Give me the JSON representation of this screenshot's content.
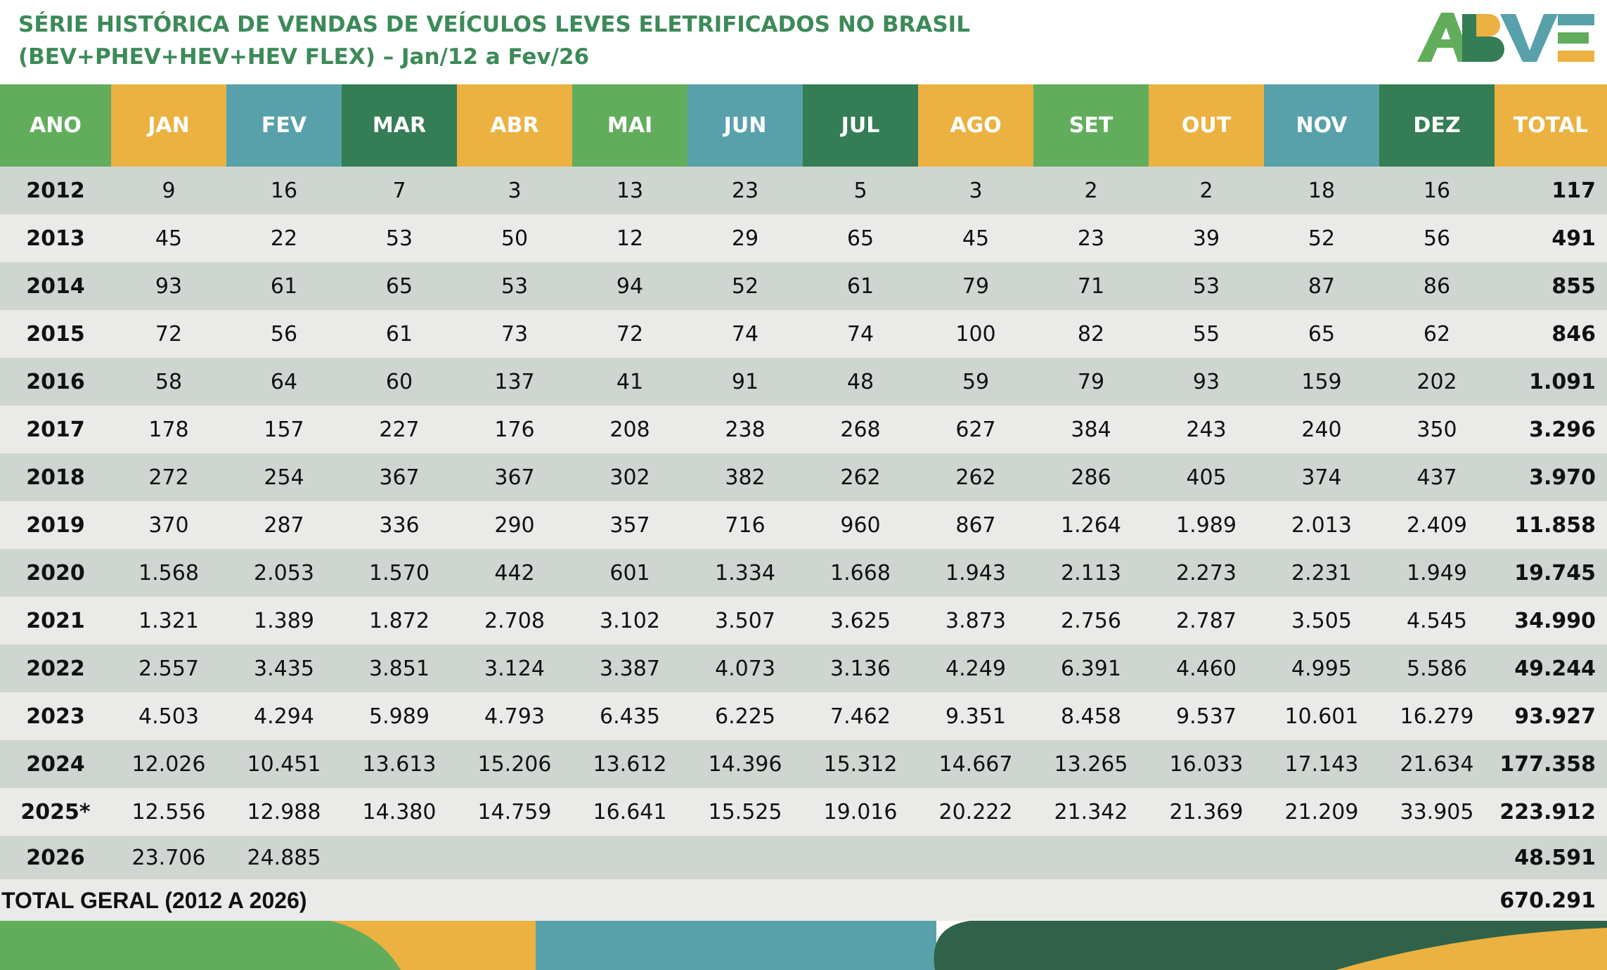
{
  "header": {
    "title_line1": "SÉRIE HISTÓRICA DE VENDAS DE VEÍCULOS LEVES ELETRIFICADOS NO BRASIL",
    "title_line2": "(BEV+PHEV+HEV+HEV FLEX) – Jan/12 a Fev/26",
    "logo_text": "ABVE"
  },
  "colors": {
    "green": "#62ad5c",
    "orange": "#ebb141",
    "teal": "#58a1ab",
    "dark_green": "#347d55",
    "title_green": "#3c8a58",
    "row_dark": "#cfd6d1",
    "row_light": "#eaebe9"
  },
  "table": {
    "columns": [
      "ANO",
      "JAN",
      "FEV",
      "MAR",
      "ABR",
      "MAI",
      "JUN",
      "JUL",
      "AGO",
      "SET",
      "OUT",
      "NOV",
      "DEZ",
      "TOTAL"
    ],
    "rows": [
      [
        "2012",
        "9",
        "16",
        "7",
        "3",
        "13",
        "23",
        "5",
        "3",
        "2",
        "2",
        "18",
        "16",
        "117"
      ],
      [
        "2013",
        "45",
        "22",
        "53",
        "50",
        "12",
        "29",
        "65",
        "45",
        "23",
        "39",
        "52",
        "56",
        "491"
      ],
      [
        "2014",
        "93",
        "61",
        "65",
        "53",
        "94",
        "52",
        "61",
        "79",
        "71",
        "53",
        "87",
        "86",
        "855"
      ],
      [
        "2015",
        "72",
        "56",
        "61",
        "73",
        "72",
        "74",
        "74",
        "100",
        "82",
        "55",
        "65",
        "62",
        "846"
      ],
      [
        "2016",
        "58",
        "64",
        "60",
        "137",
        "41",
        "91",
        "48",
        "59",
        "79",
        "93",
        "159",
        "202",
        "1.091"
      ],
      [
        "2017",
        "178",
        "157",
        "227",
        "176",
        "208",
        "238",
        "268",
        "627",
        "384",
        "243",
        "240",
        "350",
        "3.296"
      ],
      [
        "2018",
        "272",
        "254",
        "367",
        "367",
        "302",
        "382",
        "262",
        "262",
        "286",
        "405",
        "374",
        "437",
        "3.970"
      ],
      [
        "2019",
        "370",
        "287",
        "336",
        "290",
        "357",
        "716",
        "960",
        "867",
        "1.264",
        "1.989",
        "2.013",
        "2.409",
        "11.858"
      ],
      [
        "2020",
        "1.568",
        "2.053",
        "1.570",
        "442",
        "601",
        "1.334",
        "1.668",
        "1.943",
        "2.113",
        "2.273",
        "2.231",
        "1.949",
        "19.745"
      ],
      [
        "2021",
        "1.321",
        "1.389",
        "1.872",
        "2.708",
        "3.102",
        "3.507",
        "3.625",
        "3.873",
        "2.756",
        "2.787",
        "3.505",
        "4.545",
        "34.990"
      ],
      [
        "2022",
        "2.557",
        "3.435",
        "3.851",
        "3.124",
        "3.387",
        "4.073",
        "3.136",
        "4.249",
        "6.391",
        "4.460",
        "4.995",
        "5.586",
        "49.244"
      ],
      [
        "2023",
        "4.503",
        "4.294",
        "5.989",
        "4.793",
        "6.435",
        "6.225",
        "7.462",
        "9.351",
        "8.458",
        "9.537",
        "10.601",
        "16.279",
        "93.927"
      ],
      [
        "2024",
        "12.026",
        "10.451",
        "13.613",
        "15.206",
        "13.612",
        "14.396",
        "15.312",
        "14.667",
        "13.265",
        "16.033",
        "17.143",
        "21.634",
        "177.358"
      ],
      [
        "2025*",
        "12.556",
        "12.988",
        "14.380",
        "14.759",
        "16.641",
        "15.525",
        "19.016",
        "20.222",
        "21.342",
        "21.369",
        "21.209",
        "33.905",
        "223.912"
      ],
      [
        "2026",
        "23.706",
        "24.885",
        "",
        "",
        "",
        "",
        "",
        "",
        "",
        "",
        "",
        "",
        "48.591"
      ]
    ],
    "grand_total_label": "TOTAL GERAL (2012 A 2026)",
    "grand_total_value": "670.291"
  }
}
